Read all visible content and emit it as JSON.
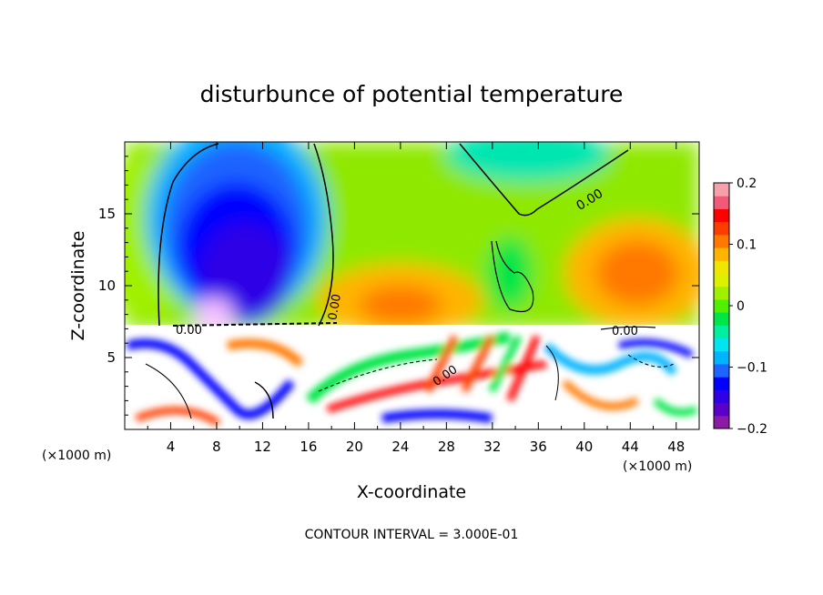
{
  "chart_data": {
    "type": "heatmap",
    "title": "disturbunce of potential temperature",
    "xlabel": "X-coordinate",
    "ylabel": "Z-coordinate",
    "x_unit": "(×1000 m)",
    "z_unit": "(×1000 m)",
    "xlim": [
      0,
      50
    ],
    "ylim": [
      0,
      20
    ],
    "x_ticks": [
      4,
      8,
      12,
      16,
      20,
      24,
      28,
      32,
      36,
      40,
      44,
      48
    ],
    "y_ticks": [
      5,
      10,
      15
    ],
    "colorbar": {
      "range": [
        -0.2,
        0.2
      ],
      "tick_labels": [
        "0.2",
        "0.1",
        "0",
        "−0.1",
        "−0.2"
      ],
      "tick_values": [
        0.2,
        0.1,
        0,
        -0.1,
        -0.2
      ],
      "colors": [
        "#8c1aa6",
        "#5b00c8",
        "#2f00e6",
        "#0000ff",
        "#1e64ff",
        "#00b4ff",
        "#00e6f0",
        "#00f0a0",
        "#00e646",
        "#50f000",
        "#a0f000",
        "#dcf000",
        "#f0e600",
        "#ffb400",
        "#ff7800",
        "#ff3c00",
        "#ff0000",
        "#f05a78",
        "#f5a0aa"
      ]
    },
    "contour_label": "0.00",
    "footer": "CONTOUR INTERVAL = 3.000E-01"
  }
}
